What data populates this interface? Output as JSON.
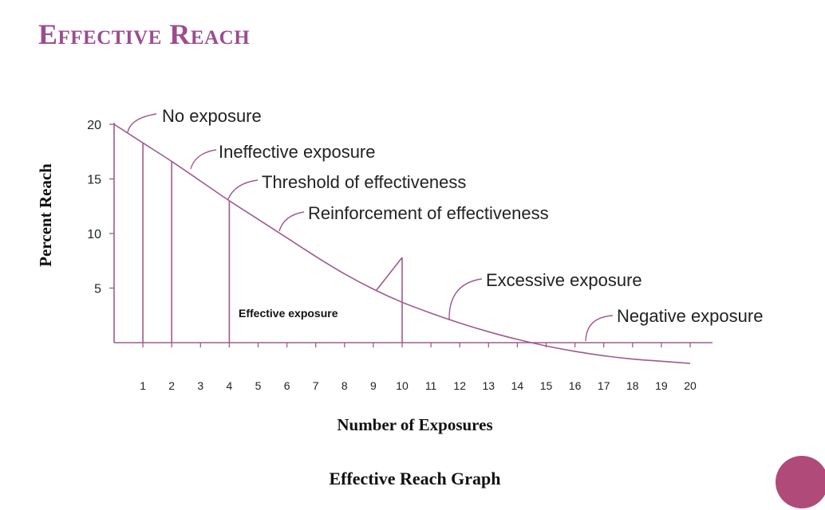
{
  "slide": {
    "title": "Effective Reach",
    "accent_color": "#9b4d8f",
    "line_color": "#a05a8c",
    "circle_color": "#b04b79"
  },
  "chart_data": {
    "type": "line",
    "title": "Effective Reach Graph",
    "xlabel": "Number of Exposures",
    "ylabel": "Percent Reach",
    "categories": [
      "1",
      "2",
      "3",
      "4",
      "5",
      "6",
      "7",
      "8",
      "9",
      "10",
      "11",
      "12",
      "13",
      "14",
      "15",
      "16",
      "17",
      "18",
      "19",
      "20"
    ],
    "xlim": [
      0,
      21
    ],
    "ylim": [
      0,
      20
    ],
    "yticks": [
      "5",
      "10",
      "15",
      "20"
    ],
    "series": [
      {
        "name": "Percent Reach",
        "x": [
          0,
          1,
          2,
          3,
          4,
          5,
          6,
          7,
          8,
          9,
          10,
          11,
          12,
          13,
          14,
          15,
          16,
          17,
          18,
          19,
          20
        ],
        "values": [
          20,
          18.3,
          16.6,
          14.8,
          13.0,
          11.3,
          9.6,
          7.9,
          6.3,
          4.9,
          3.7,
          2.7,
          1.8,
          1.0,
          0.3,
          -0.3,
          -0.8,
          -1.2,
          -1.5,
          -1.7,
          -1.9
        ]
      }
    ],
    "markers": [
      {
        "x": 1,
        "label": "vertical-marker-1"
      },
      {
        "x": 2,
        "label": "vertical-marker-2"
      },
      {
        "x": 4,
        "label": "vertical-marker-4"
      },
      {
        "x": 10,
        "label": "vertical-marker-10"
      }
    ],
    "annotations": [
      {
        "text": "No exposure",
        "x": 0.5
      },
      {
        "text": "Ineffective exposure",
        "x": 2.7
      },
      {
        "text": "Threshold of effectiveness",
        "x": 4.0
      },
      {
        "text": "Reinforcement of effectiveness",
        "x": 5.8
      },
      {
        "text": "Excessive exposure",
        "x": 11.5
      },
      {
        "text": "Negative exposure",
        "x": 16.0
      }
    ],
    "region_label": "Effective exposure"
  }
}
